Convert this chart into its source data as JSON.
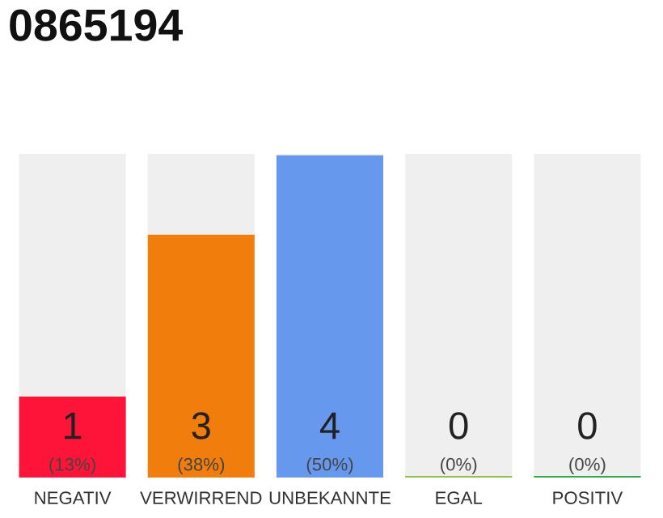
{
  "chart_data": {
    "type": "bar",
    "title": "0865194",
    "stacked": true,
    "categories": [
      "NEGATIV",
      "VERWIRREND",
      "UNBEKANNTE",
      "EGAL",
      "POSITIV"
    ],
    "series": [
      {
        "colors": [
          "#ff1439",
          "#f07d0c",
          "#6699ee",
          "#8bc34a",
          "#2eaa4a"
        ],
        "values": [
          1,
          3,
          4,
          0,
          0
        ],
        "value_labels": [
          "1\n(13%)",
          "3\n(38%)",
          "4\n(50%)",
          "0\n(0%)",
          "0\n(0%)"
        ]
      },
      {
        "color": "#efefef",
        "values": [
          3,
          1,
          0,
          4,
          4
        ]
      }
    ],
    "ylim": [
      0,
      4
    ]
  }
}
